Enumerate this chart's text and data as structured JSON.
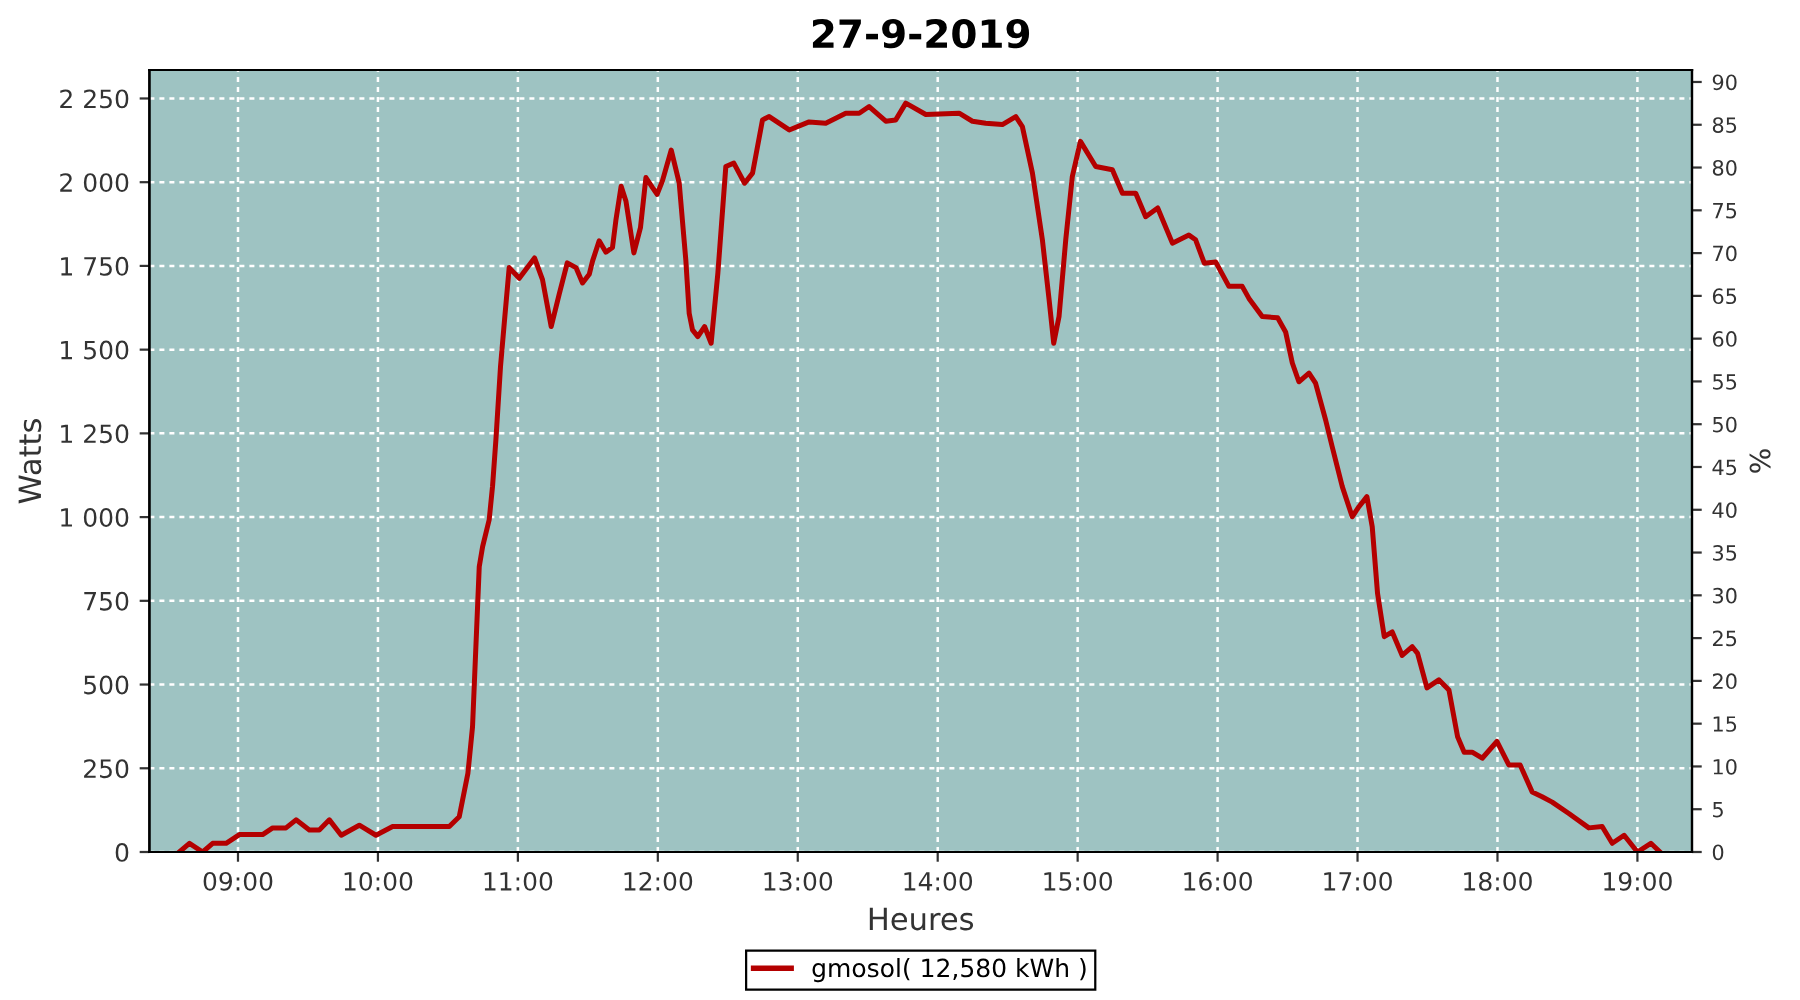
{
  "chart_data": {
    "type": "line",
    "title": "27-9-2019",
    "xlabel": "Heures",
    "ylabel": "Watts",
    "y2label": "%",
    "xlim": [
      8.367,
      19.39
    ],
    "xticks": [
      {
        "value": 9,
        "label": "09:00"
      },
      {
        "value": 10,
        "label": "10:00"
      },
      {
        "value": 11,
        "label": "11:00"
      },
      {
        "value": 12,
        "label": "12:00"
      },
      {
        "value": 13,
        "label": "13:00"
      },
      {
        "value": 14,
        "label": "14:00"
      },
      {
        "value": 15,
        "label": "15:00"
      },
      {
        "value": 16,
        "label": "16:00"
      },
      {
        "value": 17,
        "label": "17:00"
      },
      {
        "value": 18,
        "label": "18:00"
      },
      {
        "value": 19,
        "label": "19:00"
      }
    ],
    "ylim": [
      0,
      2335
    ],
    "yticks": [
      0,
      250,
      500,
      750,
      {
        "value": 1000,
        "label": "1 000"
      },
      {
        "value": 1250,
        "label": "1 250"
      },
      {
        "value": 1500,
        "label": "1 500"
      },
      {
        "value": 1750,
        "label": "1 750"
      },
      {
        "value": 2000,
        "label": "2 000"
      },
      {
        "value": 2250,
        "label": "2 250"
      }
    ],
    "y2lim": [
      0,
      91.4
    ],
    "y2ticks": [
      0,
      5,
      10,
      15,
      20,
      25,
      30,
      35,
      40,
      45,
      50,
      55,
      60,
      65,
      70,
      75,
      80,
      85,
      90
    ],
    "grid": true,
    "legend": "bottom",
    "marker": "none",
    "line_style": "solid",
    "series": [
      {
        "name": "gmosol( 12,580 kWh )",
        "color": "#b40000",
        "x": [
          8.581,
          8.653,
          8.748,
          8.819,
          8.915,
          9.01,
          9.176,
          9.248,
          9.343,
          9.415,
          9.51,
          9.581,
          9.653,
          9.738,
          9.867,
          9.986,
          10.105,
          10.51,
          10.581,
          10.643,
          10.676,
          10.7,
          10.724,
          10.748,
          10.795,
          10.819,
          10.843,
          10.876,
          10.905,
          10.938,
          11.01,
          11.119,
          11.176,
          11.238,
          11.295,
          11.353,
          11.415,
          11.462,
          11.51,
          11.534,
          11.581,
          11.629,
          11.676,
          11.7,
          11.738,
          11.772,
          11.829,
          11.876,
          11.915,
          11.962,
          11.995,
          12.033,
          12.096,
          12.153,
          12.2,
          12.224,
          12.248,
          12.286,
          12.334,
          12.381,
          12.429,
          12.486,
          12.543,
          12.62,
          12.677,
          12.748,
          12.796,
          12.939,
          13.081,
          13.2,
          13.343,
          13.439,
          13.51,
          13.629,
          13.7,
          13.772,
          13.915,
          14.153,
          14.248,
          14.343,
          14.462,
          14.558,
          14.605,
          14.677,
          14.748,
          14.796,
          14.829,
          14.867,
          14.915,
          14.962,
          15.02,
          15.129,
          15.248,
          15.32,
          15.415,
          15.486,
          15.572,
          15.677,
          15.795,
          15.843,
          15.905,
          15.986,
          16.081,
          16.176,
          16.224,
          16.319,
          16.429,
          16.486,
          16.534,
          16.581,
          16.653,
          16.7,
          16.772,
          16.819,
          16.891,
          16.962,
          17.01,
          17.067,
          17.105,
          17.143,
          17.191,
          17.248,
          17.319,
          17.391,
          17.429,
          17.496,
          17.581,
          17.653,
          17.715,
          17.762,
          17.819,
          17.891,
          17.996,
          18.081,
          18.162,
          18.248,
          18.319,
          18.391,
          18.51,
          18.653,
          18.748,
          18.82,
          18.905,
          19.0,
          19.096,
          19.162
        ],
        "values": [
          0,
          26,
          0,
          26,
          26,
          52,
          52,
          72,
          72,
          96,
          66,
          66,
          96,
          50,
          80,
          50,
          76,
          76,
          105,
          235,
          374,
          613,
          852,
          912,
          992,
          1092,
          1231,
          1450,
          1590,
          1745,
          1713,
          1774,
          1709,
          1569,
          1665,
          1759,
          1745,
          1699,
          1725,
          1765,
          1825,
          1791,
          1805,
          1885,
          1988,
          1944,
          1789,
          1864,
          2014,
          1984,
          1964,
          2004,
          2096,
          1997,
          1768,
          1609,
          1559,
          1539,
          1569,
          1519,
          1728,
          2047,
          2057,
          1997,
          2027,
          2186,
          2196,
          2156,
          2180,
          2176,
          2206,
          2206,
          2226,
          2182,
          2186,
          2236,
          2202,
          2206,
          2182,
          2176,
          2172,
          2196,
          2166,
          2027,
          1828,
          1649,
          1519,
          1599,
          1828,
          2017,
          2122,
          2047,
          2037,
          1967,
          1967,
          1897,
          1923,
          1818,
          1842,
          1828,
          1758,
          1762,
          1689,
          1689,
          1653,
          1599,
          1595,
          1553,
          1460,
          1404,
          1430,
          1400,
          1290,
          1210,
          1091,
          1001,
          1031,
          1061,
          971,
          772,
          643,
          657,
          587,
          613,
          593,
          490,
          514,
          484,
          344,
          298,
          298,
          280,
          330,
          260,
          260,
          179,
          165,
          149,
          115,
          72,
          76,
          26,
          50,
          0,
          26,
          0
        ]
      }
    ]
  }
}
